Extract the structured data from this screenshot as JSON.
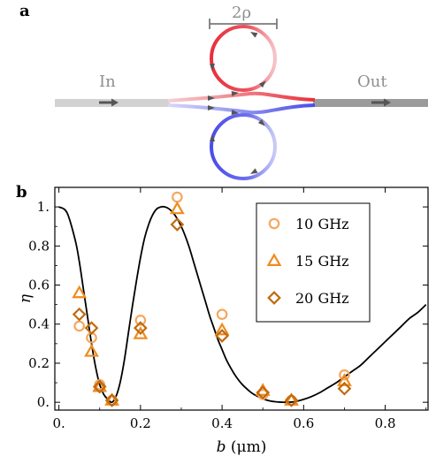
{
  "panel_a": {
    "label": "a",
    "in_label": "In",
    "out_label": "Out",
    "dimension_label": "2ρ",
    "colors": {
      "input_waveguide": "#d2d2d2",
      "output_waveguide": "#9b9b9b",
      "upper_ring": "#e8303c",
      "upper_ring_light": "#f6c4c8",
      "lower_ring": "#4a4ee8",
      "lower_ring_light": "#c9cbf6",
      "arrow": "#555555"
    }
  },
  "panel_b": {
    "label": "b"
  },
  "chart_data": {
    "type": "scatter",
    "title": "",
    "xlabel": "b (μm)",
    "ylabel": "η",
    "xlim": [
      -0.01,
      0.905
    ],
    "ylim": [
      -0.04,
      1.1
    ],
    "xticks": [
      0.0,
      0.2,
      0.4,
      0.6,
      0.8
    ],
    "xtick_labels": [
      "0.",
      "0.2",
      "0.4",
      "0.6",
      "0.8"
    ],
    "yticks": [
      0.0,
      0.2,
      0.4,
      0.6,
      0.8,
      1.0
    ],
    "ytick_labels": [
      "0.",
      "0.2",
      "0.4",
      "0.6",
      "0.8",
      "1."
    ],
    "grid": false,
    "legend_position": "top-right",
    "curve": {
      "color": "#000000",
      "x": [
        0.0,
        0.02,
        0.04,
        0.05,
        0.06,
        0.07,
        0.08,
        0.09,
        0.1,
        0.11,
        0.12,
        0.13,
        0.14,
        0.15,
        0.16,
        0.17,
        0.18,
        0.19,
        0.2,
        0.21,
        0.22,
        0.23,
        0.24,
        0.25,
        0.26,
        0.27,
        0.28,
        0.29,
        0.3,
        0.31,
        0.32,
        0.33,
        0.34,
        0.35,
        0.36,
        0.37,
        0.38,
        0.39,
        0.4,
        0.41,
        0.42,
        0.43,
        0.44,
        0.45,
        0.46,
        0.47,
        0.48,
        0.49,
        0.5,
        0.51,
        0.52,
        0.53,
        0.54,
        0.55,
        0.56,
        0.57,
        0.58,
        0.6,
        0.62,
        0.64,
        0.66,
        0.68,
        0.7,
        0.72,
        0.74,
        0.76,
        0.78,
        0.8,
        0.82,
        0.84,
        0.86,
        0.88,
        0.9
      ],
      "y": [
        1.0,
        0.97,
        0.83,
        0.72,
        0.58,
        0.44,
        0.3,
        0.18,
        0.09,
        0.04,
        0.015,
        0.0,
        0.03,
        0.1,
        0.21,
        0.35,
        0.49,
        0.62,
        0.74,
        0.84,
        0.91,
        0.96,
        0.99,
        1.0,
        1.0,
        0.99,
        0.97,
        0.94,
        0.9,
        0.85,
        0.79,
        0.72,
        0.65,
        0.58,
        0.51,
        0.44,
        0.38,
        0.32,
        0.27,
        0.22,
        0.18,
        0.145,
        0.115,
        0.09,
        0.07,
        0.052,
        0.038,
        0.027,
        0.018,
        0.011,
        0.006,
        0.003,
        0.001,
        0.0,
        0.0,
        0.001,
        0.004,
        0.015,
        0.03,
        0.05,
        0.075,
        0.1,
        0.13,
        0.16,
        0.19,
        0.23,
        0.27,
        0.31,
        0.35,
        0.39,
        0.43,
        0.46,
        0.5
      ]
    },
    "series": [
      {
        "name": "10 GHz",
        "marker": "circle",
        "color": "#f5a75e",
        "x": [
          0.05,
          0.08,
          0.1,
          0.13,
          0.2,
          0.29,
          0.4,
          0.5,
          0.57,
          0.7
        ],
        "y": [
          0.39,
          0.33,
          0.09,
          0.01,
          0.42,
          1.05,
          0.45,
          0.04,
          0.01,
          0.14
        ]
      },
      {
        "name": "15 GHz",
        "marker": "triangle",
        "color": "#ef8b1f",
        "x": [
          0.05,
          0.08,
          0.1,
          0.13,
          0.2,
          0.29,
          0.4,
          0.5,
          0.57,
          0.7
        ],
        "y": [
          0.56,
          0.26,
          0.08,
          0.01,
          0.35,
          0.99,
          0.37,
          0.06,
          0.01,
          0.11
        ]
      },
      {
        "name": "20 GHz",
        "marker": "diamond",
        "color": "#c06a0f",
        "x": [
          0.05,
          0.08,
          0.1,
          0.13,
          0.2,
          0.29,
          0.4,
          0.5,
          0.57,
          0.7
        ],
        "y": [
          0.45,
          0.38,
          0.08,
          0.01,
          0.38,
          0.91,
          0.34,
          0.05,
          0.01,
          0.07
        ]
      }
    ]
  }
}
